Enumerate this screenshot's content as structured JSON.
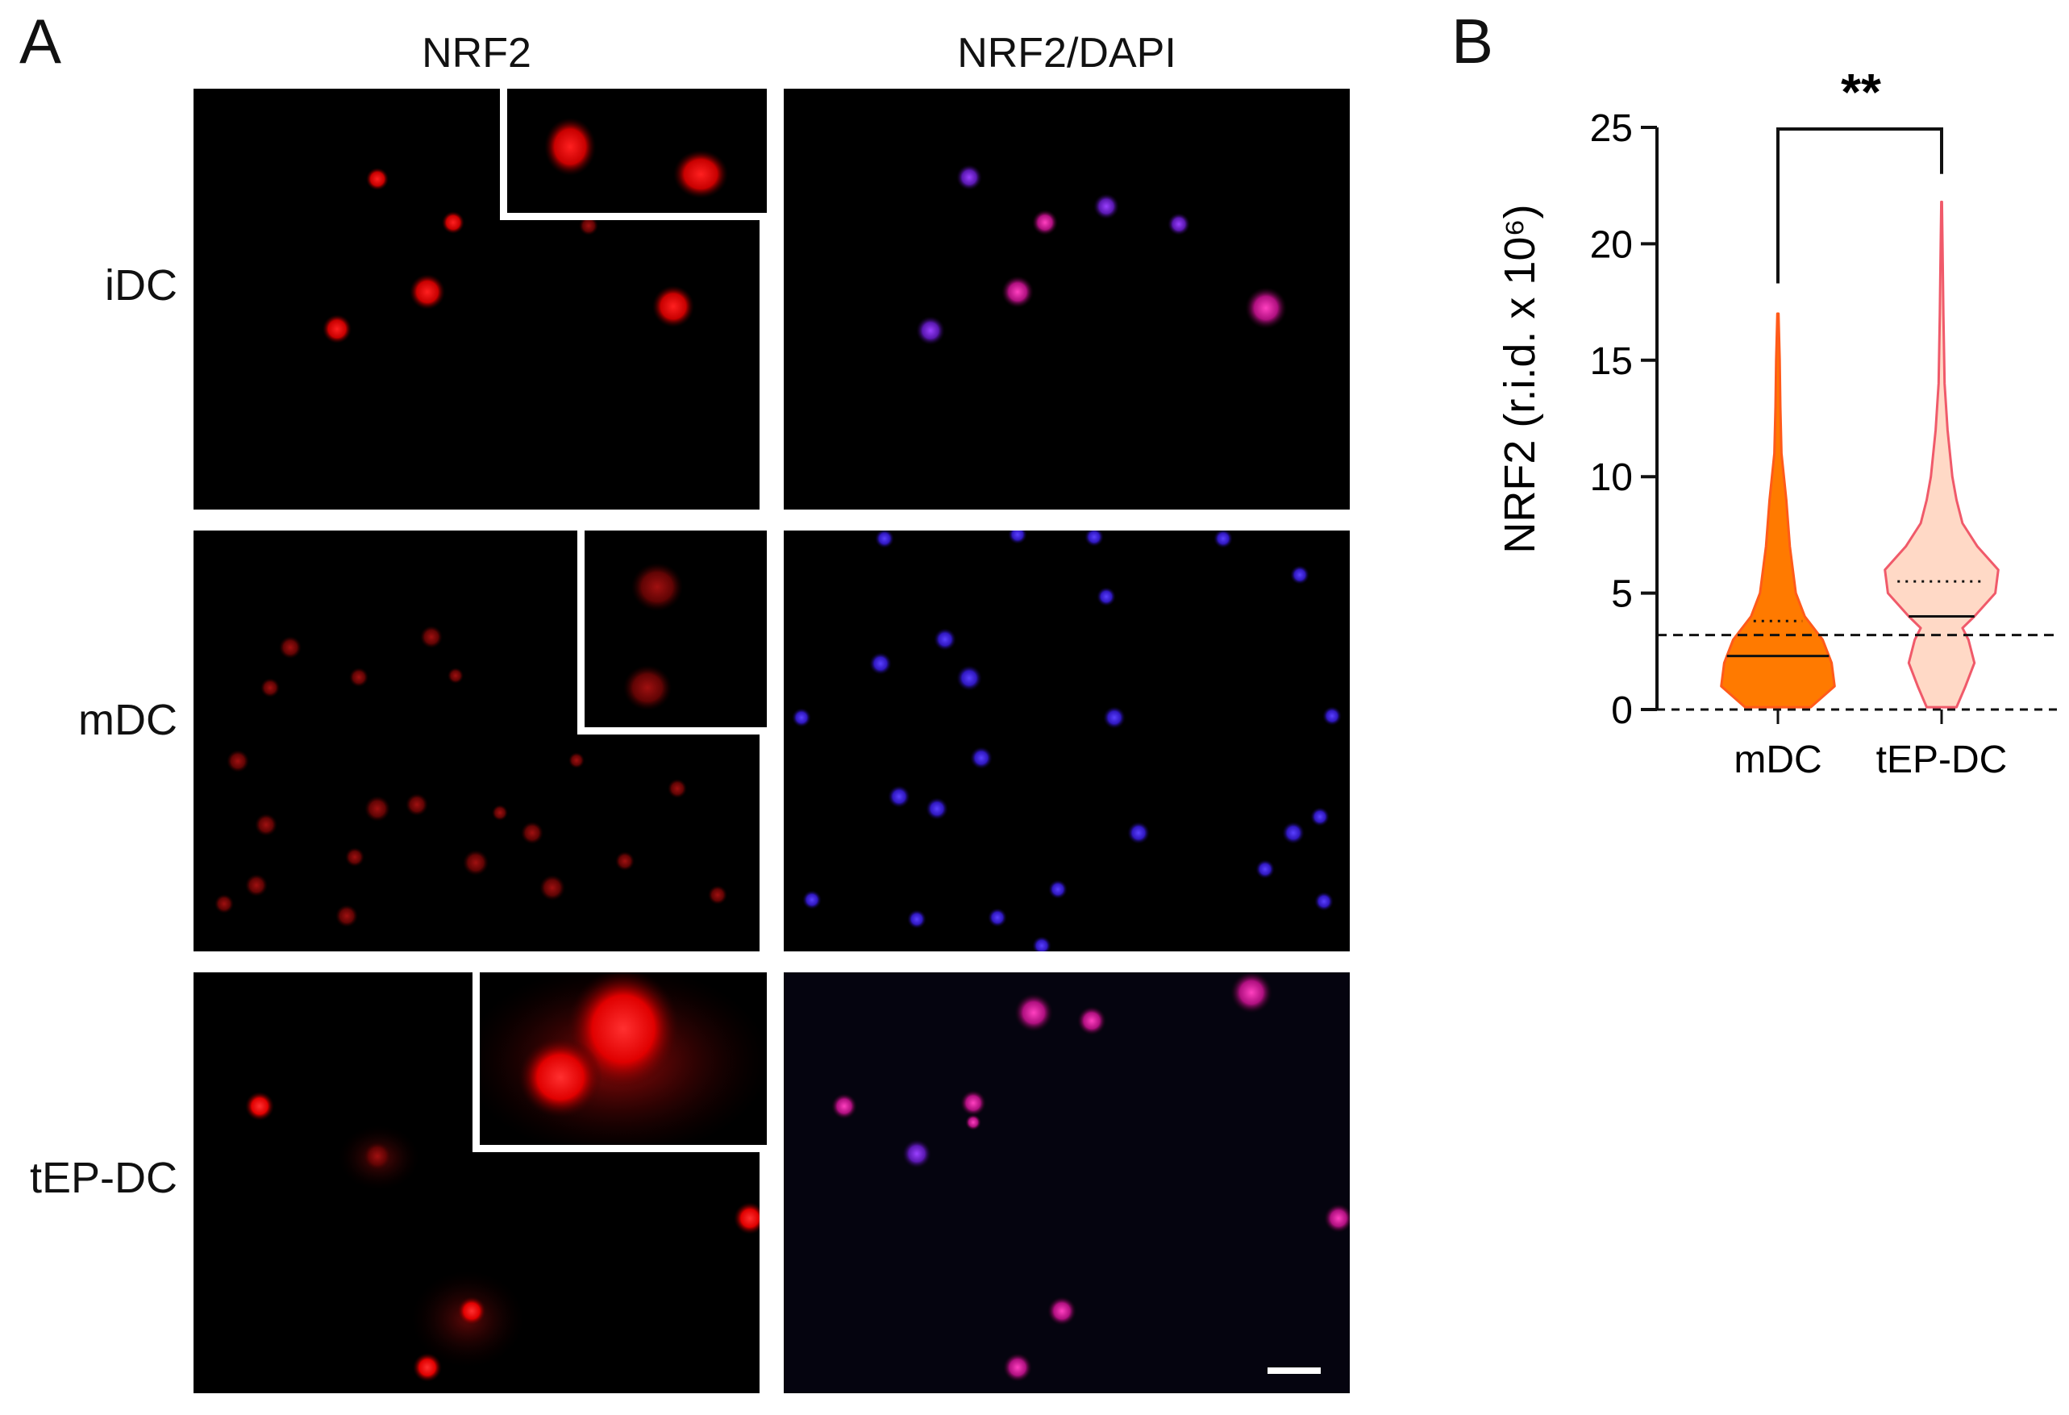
{
  "panel_a": {
    "letter": "A",
    "column_headers": [
      "NRF2",
      "NRF2/DAPI"
    ],
    "row_labels": [
      "iDC",
      "mDC",
      "tEP-DC"
    ]
  },
  "panel_b": {
    "letter": "B",
    "significance": "**"
  },
  "colors": {
    "mDC_fill": "#ff7a00",
    "mDC_line": "#ff5a1a",
    "tEP_fill": "#ffd9c6",
    "tEP_line": "#f05a6a",
    "nrf2_red": "#ff1a1a",
    "dapi_blue": "#4a30ff",
    "merge_magenta": "#ff2a9a"
  },
  "chart_data": {
    "type": "violin",
    "ylabel": "NRF2 (r.i.d. x 10⁶)",
    "ylim": [
      0,
      25
    ],
    "yticks": [
      0,
      5,
      10,
      15,
      20,
      25
    ],
    "categories": [
      "mDC",
      "tEP-DC"
    ],
    "reference_line": 3.2,
    "series": [
      {
        "name": "mDC",
        "min": 0.2,
        "max": 17,
        "median": 2.3,
        "q3": 3.8,
        "density": [
          [
            0.1,
            0.55
          ],
          [
            1,
            0.95
          ],
          [
            2,
            0.9
          ],
          [
            3,
            0.75
          ],
          [
            4,
            0.45
          ],
          [
            5,
            0.3
          ],
          [
            6,
            0.25
          ],
          [
            7,
            0.2
          ],
          [
            8,
            0.17
          ],
          [
            9,
            0.14
          ],
          [
            10,
            0.1
          ],
          [
            11,
            0.06
          ],
          [
            13,
            0.04
          ],
          [
            15,
            0.03
          ],
          [
            17,
            0.01
          ]
        ]
      },
      {
        "name": "tEP-DC",
        "min": 0.3,
        "max": 21.8,
        "median": 4,
        "q3": 5.5,
        "density": [
          [
            0.1,
            0.25
          ],
          [
            1,
            0.4
          ],
          [
            2,
            0.55
          ],
          [
            3,
            0.45
          ],
          [
            3.5,
            0.35
          ],
          [
            4,
            0.55
          ],
          [
            5,
            0.9
          ],
          [
            6,
            0.95
          ],
          [
            7,
            0.6
          ],
          [
            8,
            0.35
          ],
          [
            9,
            0.25
          ],
          [
            10,
            0.18
          ],
          [
            12,
            0.1
          ],
          [
            14,
            0.05
          ],
          [
            17,
            0.03
          ],
          [
            20,
            0.015
          ],
          [
            21.8,
            0.005
          ]
        ]
      }
    ]
  }
}
